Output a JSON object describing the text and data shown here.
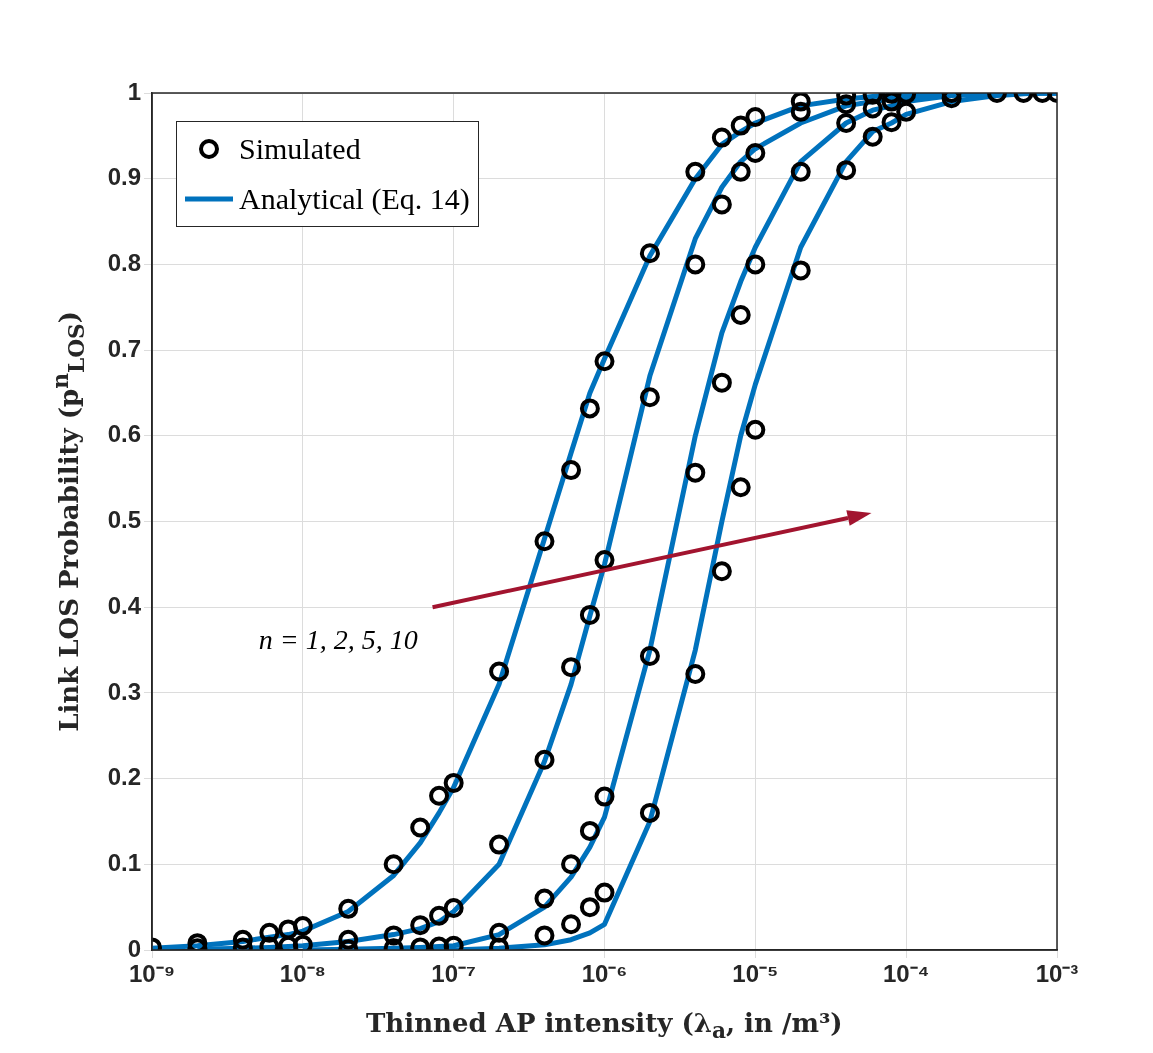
{
  "chart_data": {
    "type": "line",
    "xlabel": "Thinned AP intensity (λ$_{a}$, in /m³)",
    "ylabel": "Link LOS Probability (p$^{n}$$_{LOS}$)",
    "annotations": [
      "n = 1, 2, 5, 10"
    ],
    "x": [
      1e-09,
      2e-09,
      4e-09,
      6e-09,
      8e-09,
      1e-08,
      2e-08,
      4e-08,
      6e-08,
      8e-08,
      1e-07,
      2e-07,
      4e-07,
      6e-07,
      8e-07,
      1e-06,
      2e-06,
      4e-06,
      6e-06,
      8e-06,
      1e-05,
      2e-05,
      4e-05,
      6e-05,
      8e-05,
      0.0001,
      0.0002,
      0.0004,
      0.0006,
      0.0008,
      0.001
    ],
    "series": [
      {
        "type": "scatter",
        "marker": "circle",
        "name": "Simulated",
        "color": "#000000",
        "values": [
          0.003,
          0.008,
          0.012,
          0.02,
          0.024,
          0.028,
          0.048,
          0.1,
          0.143,
          0.18,
          0.195,
          0.325,
          0.477,
          0.56,
          0.632,
          0.687,
          0.813,
          0.908,
          0.948,
          0.962,
          0.972,
          0.99,
          0.997,
          0.998,
          0.999,
          0.999,
          1,
          1,
          1,
          1,
          1
        ]
      },
      {
        "type": "scatter",
        "marker": "circle",
        "color": "#000000",
        "values": [
          null,
          0.002,
          0.003,
          0.004,
          0.005,
          0.006,
          0.012,
          0.017,
          0.029,
          0.04,
          0.049,
          0.123,
          0.222,
          0.33,
          0.391,
          0.455,
          0.645,
          0.8,
          0.87,
          0.908,
          0.93,
          0.978,
          0.987,
          null,
          null,
          null,
          null,
          null,
          null,
          null,
          null
        ]
      },
      {
        "type": "scatter",
        "marker": "circle",
        "color": "#000000",
        "values": [
          null,
          null,
          null,
          null,
          null,
          null,
          0.001,
          0.002,
          0.003,
          0.004,
          0.005,
          0.02,
          0.06,
          0.1,
          0.139,
          0.179,
          0.343,
          0.557,
          0.662,
          0.741,
          0.8,
          0.908,
          0.965,
          0.982,
          0.99,
          null,
          null,
          null,
          null,
          null,
          null
        ]
      },
      {
        "type": "scatter",
        "marker": "circle",
        "color": "#000000",
        "values": [
          null,
          null,
          null,
          null,
          null,
          null,
          null,
          null,
          null,
          null,
          null,
          0.003,
          0.017,
          0.03,
          0.05,
          0.067,
          0.16,
          0.322,
          0.442,
          0.54,
          0.607,
          0.793,
          0.91,
          0.949,
          0.966,
          0.978,
          0.994,
          null,
          null,
          null,
          null
        ]
      },
      {
        "name": "Analytical (Eq. 14)",
        "color": "#0072bd",
        "values": [
          0.002,
          0.005,
          0.01,
          0.015,
          0.018,
          0.022,
          0.045,
          0.087,
          0.125,
          0.16,
          0.19,
          0.31,
          0.48,
          0.58,
          0.65,
          0.69,
          0.81,
          0.9,
          0.94,
          0.955,
          0.965,
          0.985,
          0.993,
          0.996,
          0.997,
          0.998,
          0.999,
          1,
          1,
          1,
          1
        ]
      },
      {
        "color": "#0072bd",
        "values": [
          null,
          0.001,
          0.002,
          0.003,
          0.004,
          0.005,
          0.01,
          0.018,
          0.025,
          0.033,
          0.045,
          0.1,
          0.22,
          0.31,
          0.39,
          0.45,
          0.67,
          0.83,
          0.89,
          0.92,
          0.935,
          0.965,
          0.985,
          0.99,
          0.993,
          0.995,
          0.998,
          0.999,
          1,
          1,
          1
        ]
      },
      {
        "color": "#0072bd",
        "values": [
          null,
          null,
          null,
          null,
          null,
          0,
          0.001,
          0.002,
          0.003,
          0.004,
          0.005,
          0.018,
          0.05,
          0.085,
          0.12,
          0.155,
          0.35,
          0.6,
          0.72,
          0.78,
          0.82,
          0.92,
          0.965,
          0.98,
          0.985,
          0.99,
          0.997,
          0.999,
          1,
          1,
          1
        ]
      },
      {
        "color": "#0072bd",
        "values": [
          null,
          null,
          null,
          null,
          null,
          null,
          0,
          0,
          0,
          0,
          0,
          0.002,
          0.006,
          0.012,
          0.02,
          0.03,
          0.15,
          0.35,
          0.5,
          0.6,
          0.66,
          0.82,
          0.92,
          0.955,
          0.965,
          0.975,
          0.99,
          0.997,
          0.999,
          1,
          1
        ]
      }
    ],
    "log": "x",
    "xlim": [
      1e-09,
      0.001
    ],
    "xticks": [
      {
        "value": 1e-09,
        "label": "10⁻⁹"
      },
      {
        "value": 1e-08,
        "label": "10⁻⁸"
      },
      {
        "value": 1e-07,
        "label": "10⁻⁷"
      },
      {
        "value": 1e-06,
        "label": "10⁻⁶"
      },
      {
        "value": 1e-05,
        "label": "10⁻⁵"
      },
      {
        "value": 0.0001,
        "label": "10⁻⁴"
      },
      {
        "value": 0.001,
        "label": "10⁻³"
      }
    ],
    "ylim": [
      0,
      1
    ],
    "yticks": [
      0,
      0.1,
      0.2,
      0.3,
      0.4,
      0.5,
      0.6,
      0.7,
      0.8,
      0.9,
      1
    ],
    "grid": true,
    "legend": "top left",
    "line_style": "solid"
  }
}
